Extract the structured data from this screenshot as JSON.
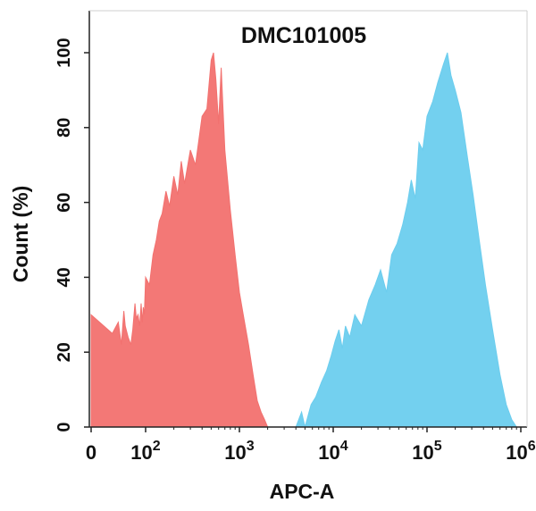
{
  "chart_data": {
    "type": "area",
    "title": "DMC101005",
    "xlabel": "APC-A",
    "ylabel": "Count (%)",
    "x_scale": "log (biexponential, 0 at left)",
    "x_ticks": [
      {
        "value": 0,
        "base": "0",
        "exp": ""
      },
      {
        "value": 100,
        "base": "10",
        "exp": "2"
      },
      {
        "value": 1000,
        "base": "10",
        "exp": "3"
      },
      {
        "value": 10000,
        "base": "10",
        "exp": "4"
      },
      {
        "value": 100000,
        "base": "10",
        "exp": "5"
      },
      {
        "value": 1000000,
        "base": "10",
        "exp": "6"
      }
    ],
    "y_ticks": [
      "0",
      "20",
      "40",
      "60",
      "80",
      "100"
    ],
    "ylim": [
      0,
      100
    ],
    "grid": false,
    "series": [
      {
        "color": "#f2716f",
        "points": [
          [
            0,
            30
          ],
          [
            5,
            25
          ],
          [
            9,
            28
          ],
          [
            12,
            22
          ],
          [
            15,
            31
          ],
          [
            17,
            27
          ],
          [
            22,
            24
          ],
          [
            28,
            22
          ],
          [
            33,
            26
          ],
          [
            40,
            33
          ],
          [
            45,
            29
          ],
          [
            52,
            30
          ],
          [
            60,
            27
          ],
          [
            68,
            33
          ],
          [
            75,
            28
          ],
          [
            82,
            32
          ],
          [
            90,
            30
          ],
          [
            100,
            40
          ],
          [
            110,
            38
          ],
          [
            120,
            46
          ],
          [
            130,
            50
          ],
          [
            140,
            55
          ],
          [
            150,
            57
          ],
          [
            165,
            63
          ],
          [
            180,
            59
          ],
          [
            200,
            67
          ],
          [
            220,
            62
          ],
          [
            240,
            71
          ],
          [
            260,
            65
          ],
          [
            300,
            74
          ],
          [
            340,
            70
          ],
          [
            400,
            83
          ],
          [
            450,
            85
          ],
          [
            500,
            98
          ],
          [
            530,
            100
          ],
          [
            560,
            93
          ],
          [
            600,
            81
          ],
          [
            640,
            96
          ],
          [
            700,
            74
          ],
          [
            800,
            58
          ],
          [
            900,
            46
          ],
          [
            1000,
            36
          ],
          [
            1100,
            30
          ],
          [
            1250,
            22
          ],
          [
            1400,
            14
          ],
          [
            1550,
            7
          ],
          [
            1700,
            4
          ],
          [
            1850,
            2
          ],
          [
            2000,
            0
          ]
        ]
      },
      {
        "color": "#6ccdee",
        "points": [
          [
            4000,
            0
          ],
          [
            4600,
            4
          ],
          [
            5000,
            0
          ],
          [
            5800,
            6
          ],
          [
            6500,
            8
          ],
          [
            7500,
            12
          ],
          [
            8500,
            15
          ],
          [
            9500,
            19
          ],
          [
            10500,
            23
          ],
          [
            11500,
            26
          ],
          [
            12500,
            21
          ],
          [
            13500,
            27
          ],
          [
            15000,
            24
          ],
          [
            17000,
            30
          ],
          [
            20000,
            27
          ],
          [
            24000,
            34
          ],
          [
            28000,
            38
          ],
          [
            32000,
            42
          ],
          [
            37000,
            36
          ],
          [
            42000,
            46
          ],
          [
            48000,
            49
          ],
          [
            55000,
            54
          ],
          [
            62000,
            60
          ],
          [
            68000,
            66
          ],
          [
            75000,
            61
          ],
          [
            82000,
            76
          ],
          [
            90000,
            74
          ],
          [
            100000,
            83
          ],
          [
            115000,
            87
          ],
          [
            130000,
            92
          ],
          [
            150000,
            97
          ],
          [
            165000,
            100
          ],
          [
            180000,
            94
          ],
          [
            200000,
            90
          ],
          [
            230000,
            84
          ],
          [
            270000,
            72
          ],
          [
            310000,
            62
          ],
          [
            360000,
            50
          ],
          [
            420000,
            38
          ],
          [
            500000,
            26
          ],
          [
            600000,
            14
          ],
          [
            700000,
            6
          ],
          [
            800000,
            2
          ],
          [
            900000,
            0
          ]
        ]
      }
    ]
  }
}
